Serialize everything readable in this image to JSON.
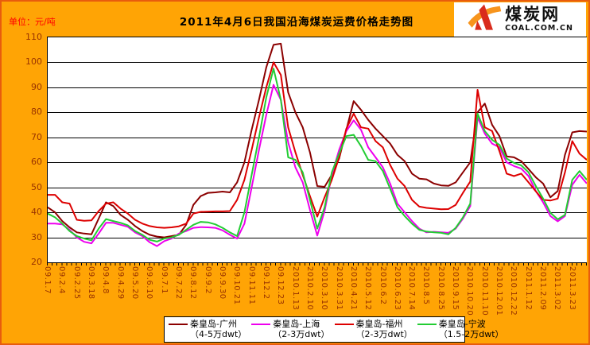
{
  "header": {
    "unit_label": "单位：元/吨",
    "title": "2011年4月6日我国沿海煤炭运费价格走势图",
    "logo": {
      "name": "煤炭网",
      "domain": "COAL.COM.CN"
    }
  },
  "colors": {
    "background": "#FFA405",
    "frame_border": "#E85C0D",
    "plot_bg": "#FFFFFF",
    "axis_label": "#993300",
    "unit_label": "#FF0000",
    "logo_red": "#D92B1C",
    "logo_orange": "#F7941D"
  },
  "chart_data": {
    "type": "line",
    "title": "2011年4月6日我国沿海煤炭运费价格走势图",
    "ylabel": "元/吨",
    "ylim": [
      20,
      110
    ],
    "y_ticks": [
      20,
      30,
      40,
      50,
      60,
      70,
      80,
      90,
      100,
      110
    ],
    "grid": true,
    "legend_position": "bottom",
    "x_labels": [
      "09.1.7",
      "09.2.4",
      "09.2.25",
      "09.3.18",
      "09.4.8",
      "09.4.29",
      "09.5.20",
      "09.6.10",
      "09.7.1",
      "09.7.22",
      "09.8.12",
      "09.9.2",
      "09.9.30",
      "09.10.21",
      "09.11.11",
      "09.12.2",
      "09.12.23",
      "2010.1.13",
      "2010.2.10",
      "2010.3.10",
      "2010.3.31",
      "2010.4.21",
      "2010.5.12",
      "2010.6.2",
      "2010.6.23",
      "2010.7.14",
      "2010.8.5",
      "2010.8.25",
      "2010.9.15",
      "2010.10.20",
      "2010.11.10",
      "2010.12.01",
      "2010.12.22",
      "2011.1.12",
      "2011.2.09",
      "2011.3.02",
      "2011.3.23"
    ],
    "points_per_label": 2,
    "series": [
      {
        "name": "秦皇岛-广州",
        "dwt": "（4-5万dwt）",
        "color": "#8B0000",
        "values": [
          42,
          40,
          36.5,
          34,
          32,
          31.5,
          31.2,
          37.5,
          44,
          42.5,
          39,
          37,
          34.5,
          32.5,
          31,
          30.3,
          30,
          30.5,
          31,
          35,
          43,
          46.5,
          47.8,
          48,
          48.3,
          48,
          52,
          60,
          73,
          85,
          98,
          107,
          107.5,
          88,
          80,
          74,
          64,
          50.5,
          50.2,
          55,
          61.5,
          73,
          84.5,
          81,
          77,
          73.5,
          70.5,
          67.5,
          63,
          60.5,
          55.5,
          53.5,
          53.2,
          51.5,
          50.8,
          50.6,
          52,
          56,
          60,
          80,
          83.5,
          75,
          70.5,
          62.4,
          62,
          60.5,
          57.3,
          54,
          51.5,
          46,
          48.5,
          63,
          72,
          72.5,
          72.3
        ]
      },
      {
        "name": "秦皇岛-上海",
        "dwt": "（2-3万dwt）",
        "color": "#EE00EE",
        "values": [
          35.5,
          35.5,
          35.2,
          33,
          30,
          28.2,
          27.6,
          31.5,
          35.8,
          35.8,
          35,
          34.2,
          32,
          30.5,
          28,
          26.5,
          28.5,
          29.5,
          31.5,
          32.5,
          33.8,
          34.1,
          34,
          33.8,
          32.8,
          31,
          29.5,
          35.5,
          50,
          65,
          79,
          91,
          85,
          68,
          58,
          52,
          41,
          30.7,
          40.5,
          55,
          65,
          72.5,
          76.8,
          73,
          66,
          62,
          58,
          51.5,
          43.5,
          40,
          36.5,
          33.5,
          32,
          32.2,
          32,
          31.8,
          33.5,
          37.5,
          42.5,
          78,
          71.5,
          67.5,
          66,
          60,
          58.5,
          57.5,
          54.5,
          48.5,
          44,
          38.5,
          36.4,
          38.5,
          51,
          55,
          51.5
        ]
      },
      {
        "name": "秦皇岛-福州",
        "dwt": "（2-3万dwt）",
        "color": "#DD0000",
        "values": [
          47,
          47,
          44,
          43.5,
          37,
          36.6,
          36.8,
          40.5,
          43.5,
          44,
          41.5,
          39.5,
          37,
          35.5,
          34.5,
          34,
          33.8,
          34,
          34.4,
          35.5,
          39.5,
          40.2,
          40.3,
          40.4,
          40.4,
          40.5,
          45,
          53,
          65,
          78,
          90,
          100,
          95,
          74,
          64,
          55,
          46.5,
          38.3,
          46,
          53,
          62,
          73.5,
          79.5,
          74,
          73.5,
          68.5,
          66,
          59,
          53.5,
          50.5,
          45,
          42.3,
          41.8,
          41.5,
          41.2,
          41.3,
          43,
          47.8,
          52.3,
          89,
          74,
          72.5,
          64.5,
          55.5,
          54.5,
          55.5,
          52,
          48.4,
          45,
          44.7,
          45.5,
          56,
          68.5,
          63.5,
          61
        ]
      },
      {
        "name": "秦皇岛-宁波",
        "dwt": "（1.5-2万dwt）",
        "color": "#22CC33",
        "values": [
          39.5,
          38,
          35.5,
          32.5,
          30.5,
          29.5,
          28.8,
          33.5,
          37.3,
          36.5,
          35.8,
          34.8,
          32.5,
          31,
          29,
          28.3,
          29.5,
          30,
          31,
          33,
          35,
          36.2,
          36,
          35.2,
          33.8,
          32,
          30.5,
          40,
          55,
          70,
          86,
          97.5,
          85,
          62,
          61,
          56,
          45,
          33.5,
          42,
          56,
          63.5,
          70.5,
          71,
          66.5,
          61,
          60.5,
          56.5,
          49.5,
          42,
          38.5,
          35.5,
          33,
          32.3,
          32,
          31.8,
          31.2,
          33.8,
          38,
          43.5,
          79.5,
          72.5,
          69,
          67,
          61.5,
          59.8,
          58.8,
          56,
          50.5,
          45.5,
          39.8,
          37.2,
          39,
          53,
          56.5,
          53
        ]
      }
    ]
  }
}
